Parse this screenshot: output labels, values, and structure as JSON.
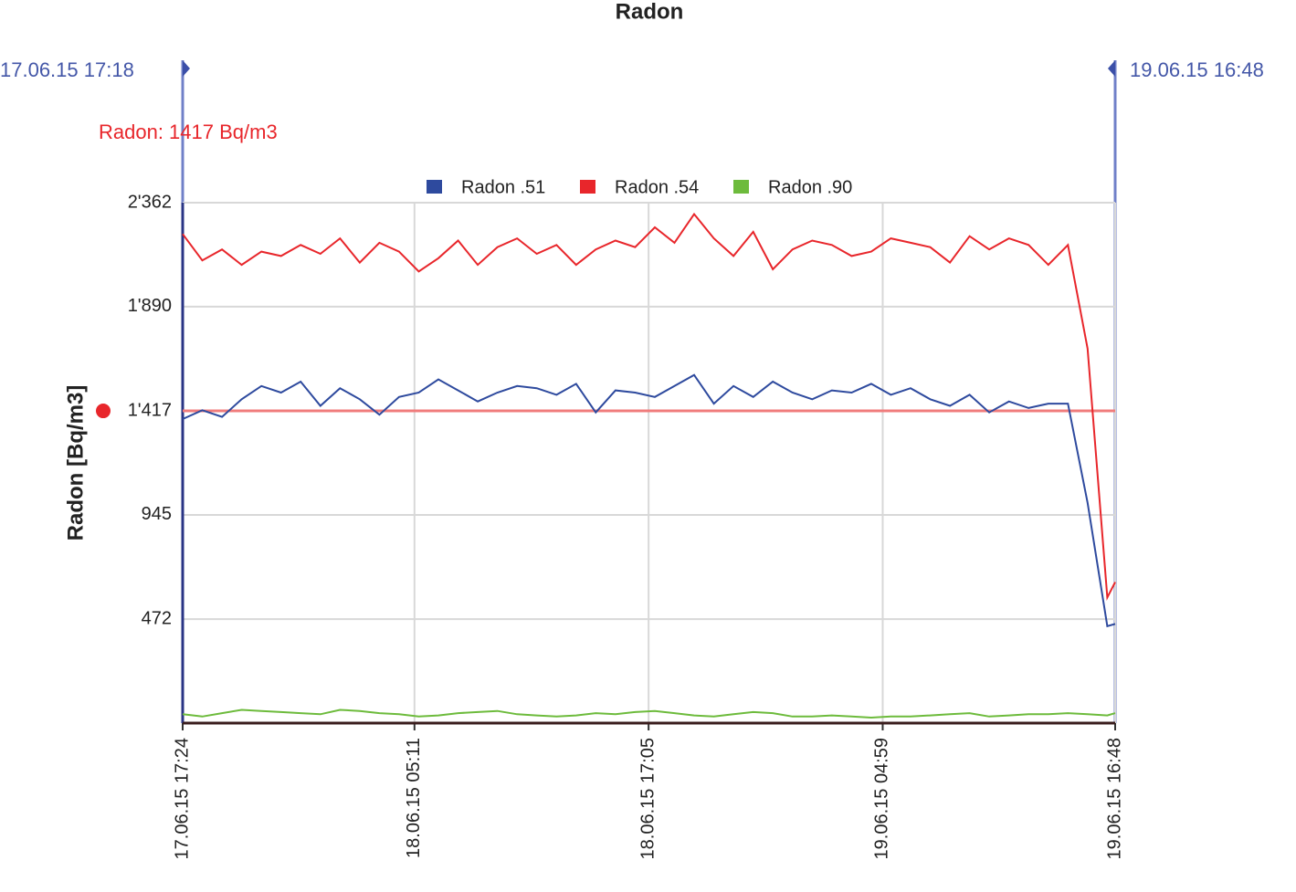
{
  "chart_data": {
    "type": "line",
    "title": "Radon",
    "y_label": "Radon [Bq/m3]",
    "cursors": [
      "17.06.15 17:18",
      "19.06.15 16:48"
    ],
    "annotation": {
      "text": "Radon: 1417 Bq/m3",
      "value": 1417,
      "color": "#e8262b"
    },
    "x": [
      "2015-06-17T17:24",
      "2015-06-17T18:24",
      "2015-06-17T19:24",
      "2015-06-17T20:24",
      "2015-06-17T21:24",
      "2015-06-17T22:24",
      "2015-06-17T23:24",
      "2015-06-18T00:24",
      "2015-06-18T01:24",
      "2015-06-18T02:24",
      "2015-06-18T03:24",
      "2015-06-18T04:24",
      "2015-06-18T05:24",
      "2015-06-18T06:24",
      "2015-06-18T07:24",
      "2015-06-18T08:24",
      "2015-06-18T09:24",
      "2015-06-18T10:24",
      "2015-06-18T11:24",
      "2015-06-18T12:24",
      "2015-06-18T13:24",
      "2015-06-18T14:24",
      "2015-06-18T15:24",
      "2015-06-18T16:24",
      "2015-06-18T17:24",
      "2015-06-18T18:24",
      "2015-06-18T19:24",
      "2015-06-18T20:24",
      "2015-06-18T21:24",
      "2015-06-18T22:24",
      "2015-06-18T23:24",
      "2015-06-19T00:24",
      "2015-06-19T01:24",
      "2015-06-19T02:24",
      "2015-06-19T03:24",
      "2015-06-19T04:24",
      "2015-06-19T05:24",
      "2015-06-19T06:24",
      "2015-06-19T07:24",
      "2015-06-19T08:24",
      "2015-06-19T09:24",
      "2015-06-19T10:24",
      "2015-06-19T11:24",
      "2015-06-19T12:24",
      "2015-06-19T13:24",
      "2015-06-19T14:24",
      "2015-06-19T15:24",
      "2015-06-19T16:24",
      "2015-06-19T16:48"
    ],
    "series": [
      {
        "name": "Radon .51",
        "color": "#2e4a9e",
        "values": [
          1380,
          1420,
          1390,
          1470,
          1530,
          1500,
          1550,
          1440,
          1520,
          1470,
          1400,
          1480,
          1500,
          1560,
          1510,
          1460,
          1500,
          1530,
          1520,
          1490,
          1540,
          1410,
          1510,
          1500,
          1480,
          1530,
          1580,
          1450,
          1530,
          1480,
          1550,
          1500,
          1470,
          1510,
          1500,
          1540,
          1490,
          1520,
          1470,
          1440,
          1490,
          1410,
          1460,
          1430,
          1450,
          1450,
          1000,
          440,
          450
        ]
      },
      {
        "name": "Radon .54",
        "color": "#e8262b",
        "values": [
          2220,
          2100,
          2150,
          2080,
          2140,
          2120,
          2170,
          2130,
          2200,
          2090,
          2180,
          2140,
          2050,
          2110,
          2190,
          2080,
          2160,
          2200,
          2130,
          2170,
          2080,
          2150,
          2190,
          2160,
          2250,
          2180,
          2310,
          2200,
          2120,
          2230,
          2060,
          2150,
          2190,
          2170,
          2120,
          2140,
          2200,
          2180,
          2160,
          2090,
          2210,
          2150,
          2200,
          2170,
          2080,
          2170,
          1700,
          570,
          640
        ]
      },
      {
        "name": "Radon .90",
        "color": "#6dbb3c",
        "values": [
          40,
          30,
          45,
          60,
          55,
          50,
          45,
          40,
          60,
          55,
          45,
          40,
          30,
          35,
          45,
          50,
          55,
          40,
          35,
          30,
          35,
          45,
          40,
          50,
          55,
          45,
          35,
          30,
          40,
          50,
          45,
          30,
          30,
          35,
          30,
          25,
          30,
          30,
          35,
          40,
          45,
          30,
          35,
          40,
          40,
          45,
          40,
          35,
          45
        ]
      }
    ],
    "xlim": [
      "2015-06-17T17:24",
      "2015-06-19T16:48"
    ],
    "xticks": [
      {
        "value": "2015-06-17T17:24",
        "label": "17.06.15 17:24"
      },
      {
        "value": "2015-06-18T05:11",
        "label": "18.06.15 05:11"
      },
      {
        "value": "2015-06-18T17:05",
        "label": "18.06.15 17:05"
      },
      {
        "value": "2015-06-19T04:59",
        "label": "19.06.15 04:59"
      },
      {
        "value": "2015-06-19T16:48",
        "label": "19.06.15 16:48"
      }
    ],
    "ylim": [
      0,
      2362
    ],
    "yticks": [
      {
        "value": 472,
        "label": "472"
      },
      {
        "value": 945,
        "label": "945"
      },
      {
        "value": 1417,
        "label": "1'417"
      },
      {
        "value": 1890,
        "label": "1'890"
      },
      {
        "value": 2362,
        "label": "2'362"
      }
    ],
    "grid": true
  }
}
